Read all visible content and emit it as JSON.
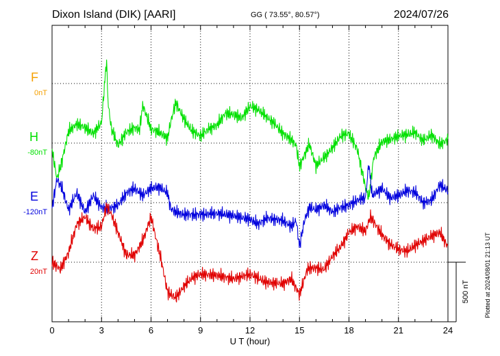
{
  "header": {
    "station": "Dixon Island (DIK)  [AARI]",
    "coords": "GG ( 73.55°,  80.57°)",
    "date": "2024/07/26"
  },
  "footer": {
    "plotted": "Plotted at 2024/08/01 21:13 UT"
  },
  "chart_data": {
    "type": "line",
    "title": "Dixon Island (DIK)  [AARI]",
    "xlabel": "U T (hour)",
    "ylabel": "",
    "xlim": [
      0,
      24
    ],
    "xticks": [
      0,
      3,
      6,
      9,
      12,
      15,
      18,
      21,
      24
    ],
    "grid": true,
    "scale_bar": {
      "label": "500 nT",
      "value_nT": 500
    },
    "colors": {
      "F": "#f5a000",
      "H": "#00e000",
      "E": "#0000dd",
      "Z": "#e00000",
      "axis": "#000000"
    },
    "series": [
      {
        "name": "F",
        "baseline_label": "0nT",
        "baseline_nT": 0,
        "x": [],
        "values": []
      },
      {
        "name": "H",
        "baseline_label": "-80nT",
        "baseline_nT": -80,
        "x": [
          0,
          0.3,
          0.6,
          1.0,
          1.5,
          2.0,
          2.5,
          3.0,
          3.3,
          3.4,
          3.6,
          4.0,
          4.5,
          5.0,
          5.3,
          5.5,
          6.0,
          6.5,
          7.0,
          7.2,
          7.5,
          8.0,
          8.5,
          9.0,
          9.5,
          10.0,
          10.5,
          11.0,
          11.5,
          12.0,
          12.5,
          13.0,
          13.5,
          14.0,
          14.5,
          14.8,
          15.0,
          15.3,
          15.6,
          16.0,
          16.5,
          17.0,
          17.5,
          18.0,
          18.5,
          19.0,
          19.2,
          19.5,
          20.0,
          20.5,
          21.0,
          21.5,
          22.0,
          22.5,
          23.0,
          23.5,
          24.0
        ],
        "values": [
          -60,
          -300,
          -150,
          100,
          160,
          130,
          80,
          170,
          700,
          330,
          120,
          -20,
          90,
          130,
          110,
          320,
          120,
          90,
          40,
          180,
          340,
          200,
          100,
          60,
          120,
          150,
          250,
          240,
          210,
          310,
          280,
          220,
          160,
          80,
          30,
          -20,
          -200,
          -100,
          -10,
          -190,
          -120,
          -40,
          60,
          80,
          -50,
          -370,
          -460,
          -120,
          10,
          30,
          60,
          70,
          90,
          20,
          70,
          -10,
          30
        ]
      },
      {
        "name": "E",
        "baseline_label": "-120nT",
        "baseline_nT": -120,
        "x": [
          0,
          0.3,
          0.6,
          1.0,
          1.5,
          2.0,
          2.5,
          3.0,
          3.5,
          4.0,
          4.5,
          5.0,
          5.5,
          6.0,
          6.5,
          7.0,
          7.2,
          7.5,
          8.0,
          9.0,
          10.0,
          11.0,
          12.0,
          12.5,
          13.0,
          14.0,
          14.5,
          14.8,
          15.0,
          15.3,
          15.6,
          16.0,
          16.5,
          17.0,
          17.5,
          18.0,
          18.5,
          19.0,
          19.2,
          19.4,
          19.6,
          20.0,
          20.5,
          21.0,
          21.5,
          22.0,
          22.5,
          23.0,
          23.5,
          24.0
        ],
        "values": [
          -40,
          200,
          120,
          -60,
          80,
          -80,
          60,
          -40,
          -50,
          -20,
          80,
          120,
          60,
          120,
          130,
          80,
          -50,
          -80,
          -100,
          -100,
          -90,
          -110,
          -140,
          -180,
          -130,
          -150,
          -200,
          -150,
          -370,
          -150,
          -40,
          -60,
          -20,
          -80,
          -40,
          -20,
          20,
          40,
          330,
          60,
          80,
          120,
          40,
          60,
          100,
          90,
          0,
          20,
          150,
          100
        ]
      },
      {
        "name": "Z",
        "baseline_label": "20nT",
        "baseline_nT": 20,
        "x": [
          0,
          0.5,
          1.0,
          1.5,
          2.0,
          2.5,
          3.0,
          3.3,
          3.6,
          4.0,
          4.5,
          5.0,
          5.5,
          6.0,
          6.3,
          6.6,
          7.0,
          7.5,
          8.0,
          8.5,
          9.0,
          10.0,
          11.0,
          12.0,
          13.0,
          14.0,
          14.5,
          15.0,
          15.5,
          16.0,
          16.5,
          17.0,
          17.5,
          18.0,
          18.5,
          19.0,
          19.3,
          19.6,
          20.0,
          20.5,
          21.0,
          21.5,
          22.0,
          22.5,
          23.0,
          23.5,
          24.0
        ],
        "values": [
          0,
          -60,
          80,
          320,
          380,
          280,
          300,
          470,
          400,
          250,
          60,
          60,
          180,
          380,
          200,
          30,
          -250,
          -300,
          -200,
          -130,
          -100,
          -110,
          -140,
          -100,
          -170,
          -180,
          -140,
          -270,
          -50,
          -50,
          -60,
          50,
          130,
          250,
          300,
          260,
          380,
          320,
          230,
          150,
          110,
          90,
          140,
          180,
          220,
          250,
          130
        ]
      }
    ]
  }
}
